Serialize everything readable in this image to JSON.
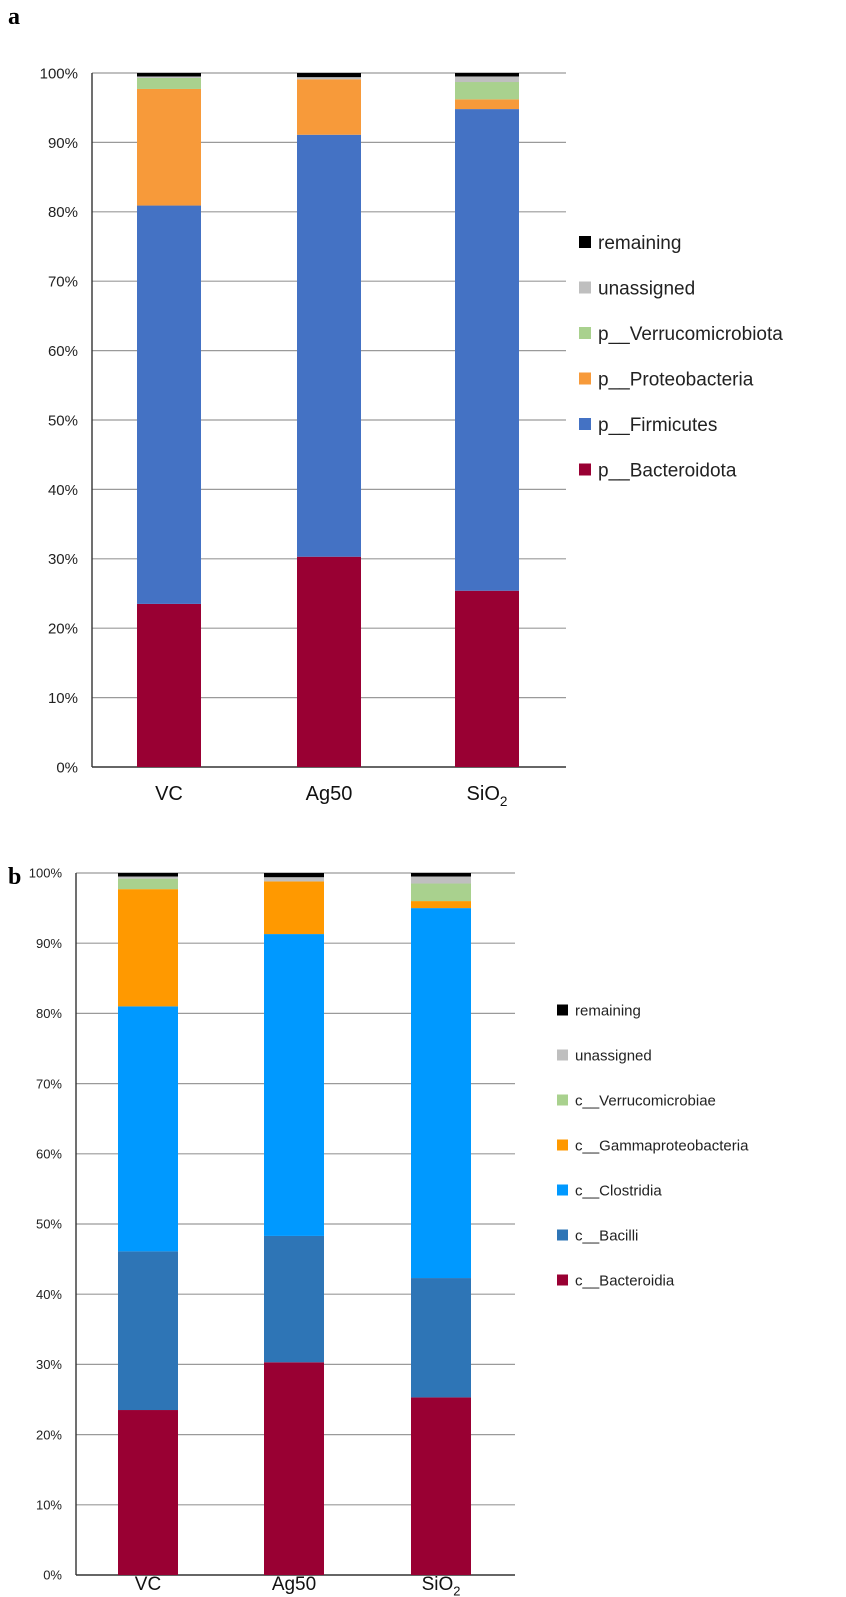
{
  "chart_data": [
    {
      "panel_label": "a",
      "type": "bar",
      "stacked": true,
      "categories": [
        "VC",
        "Ag50",
        "SiO2"
      ],
      "ylim": [
        0,
        100
      ],
      "yticks": [
        "0%",
        "10%",
        "20%",
        "30%",
        "40%",
        "50%",
        "60%",
        "70%",
        "80%",
        "90%",
        "100%"
      ],
      "grid": true,
      "legend_position": "right",
      "series": [
        {
          "name": "p__Bacteroidota",
          "color": "#990033",
          "values": [
            23.5,
            30.3,
            25.4
          ]
        },
        {
          "name": "p__Firmicutes",
          "color": "#4472C4",
          "values": [
            57.4,
            60.8,
            69.4
          ]
        },
        {
          "name": "p__Proteobacteria",
          "color": "#F79A3A",
          "values": [
            16.8,
            8.0,
            1.4
          ]
        },
        {
          "name": "p__Verrucomicrobiota",
          "color": "#A9D18E",
          "values": [
            1.6,
            0.0,
            2.5
          ]
        },
        {
          "name": "unassigned",
          "color": "#BFBFBF",
          "values": [
            0.2,
            0.3,
            0.8
          ]
        },
        {
          "name": "remaining",
          "color": "#000000",
          "values": [
            0.5,
            0.6,
            0.5
          ]
        }
      ]
    },
    {
      "panel_label": "b",
      "type": "bar",
      "stacked": true,
      "categories": [
        "VC",
        "Ag50",
        "SiO2"
      ],
      "ylim": [
        0,
        100
      ],
      "yticks": [
        "0%",
        "10%",
        "20%",
        "30%",
        "40%",
        "50%",
        "60%",
        "70%",
        "80%",
        "90%",
        "100%"
      ],
      "grid": true,
      "legend_position": "right",
      "series": [
        {
          "name": "c__Bacteroidia",
          "color": "#990033",
          "values": [
            23.5,
            30.3,
            25.3
          ]
        },
        {
          "name": "c__Bacilli",
          "color": "#2E75B6",
          "values": [
            22.6,
            18.0,
            17.0
          ]
        },
        {
          "name": "c__Clostridia",
          "color": "#0099FF",
          "values": [
            34.9,
            43.0,
            52.7
          ]
        },
        {
          "name": "c__Gammaproteobacteria",
          "color": "#FF9900",
          "values": [
            16.7,
            7.5,
            1.0
          ]
        },
        {
          "name": "c__Verrucomicrobiae",
          "color": "#A9D18E",
          "values": [
            1.5,
            0.0,
            2.5
          ]
        },
        {
          "name": "unassigned",
          "color": "#BFBFBF",
          "values": [
            0.3,
            0.6,
            1.0
          ]
        },
        {
          "name": "remaining",
          "color": "#000000",
          "values": [
            0.5,
            0.6,
            0.5
          ]
        }
      ]
    }
  ]
}
